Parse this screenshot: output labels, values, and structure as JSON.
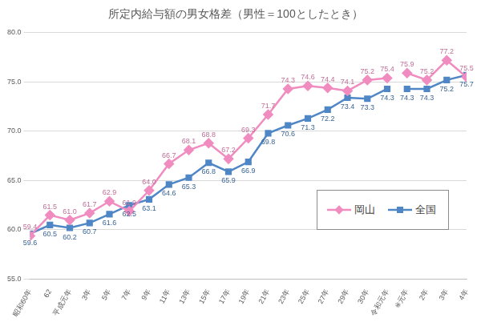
{
  "chart_data": {
    "type": "line",
    "title": "所定内給与額の男女格差（男性＝100としたとき）",
    "categories": [
      "昭和60年",
      "62",
      "平成元年",
      "3年",
      "5年",
      "7年",
      "9年",
      "11年",
      "13年",
      "15年",
      "17年",
      "19年",
      "21年",
      "23年",
      "25年",
      "27年",
      "29年",
      "30年",
      "令和元年",
      "※元年",
      "2年",
      "3年",
      "4年"
    ],
    "series": [
      {
        "name": "岡山",
        "color": "#f08cbf",
        "marker": "diamond",
        "values": [
          59.4,
          61.5,
          61.0,
          61.7,
          62.9,
          61.9,
          64.0,
          66.7,
          68.1,
          68.8,
          67.2,
          69.3,
          71.7,
          74.3,
          74.6,
          74.4,
          74.1,
          75.2,
          75.4,
          null,
          null,
          null,
          null
        ],
        "value_labels": [
          "59.4",
          "61.5",
          "61.0",
          "61.7",
          "62.9",
          "61.9",
          "64.0",
          "66.7",
          "68.1",
          "68.8",
          "67.2",
          "69.3",
          "71.7",
          "74.3",
          "74.6",
          "74.4",
          "74.1",
          "75.2",
          "75.4",
          null,
          null,
          null,
          null
        ]
      },
      {
        "name": "岡山",
        "color": "#f08cbf",
        "marker": "diamond",
        "values": [
          null,
          null,
          null,
          null,
          null,
          null,
          null,
          null,
          null,
          null,
          null,
          null,
          null,
          null,
          null,
          null,
          null,
          null,
          null,
          75.9,
          75.2,
          77.2,
          75.5
        ]
      },
      {
        "name": "全国",
        "color": "#4f86c6",
        "marker": "square",
        "values": [
          59.6,
          60.5,
          60.2,
          60.7,
          61.6,
          62.5,
          63.1,
          64.6,
          65.3,
          66.8,
          65.9,
          66.9,
          69.8,
          70.6,
          71.3,
          72.2,
          73.4,
          73.3,
          74.3,
          null,
          null,
          null,
          null
        ]
      },
      {
        "name": "全国",
        "color": "#4f86c6",
        "marker": "square",
        "values": [
          null,
          null,
          null,
          null,
          null,
          null,
          null,
          null,
          null,
          null,
          null,
          null,
          null,
          null,
          null,
          null,
          null,
          null,
          null,
          74.3,
          74.3,
          75.2,
          75.7
        ]
      }
    ],
    "ylim": [
      55,
      80
    ],
    "yticks": [
      {
        "value": 55,
        "label": "55.0"
      },
      {
        "value": 60,
        "label": "60.0"
      },
      {
        "value": 65,
        "label": "65.0"
      },
      {
        "value": 70,
        "label": "70.0"
      },
      {
        "value": 75,
        "label": "75.0"
      },
      {
        "value": 80,
        "label": "80.0"
      }
    ],
    "grid": true,
    "legend": "bottom right",
    "data_labels": true
  }
}
